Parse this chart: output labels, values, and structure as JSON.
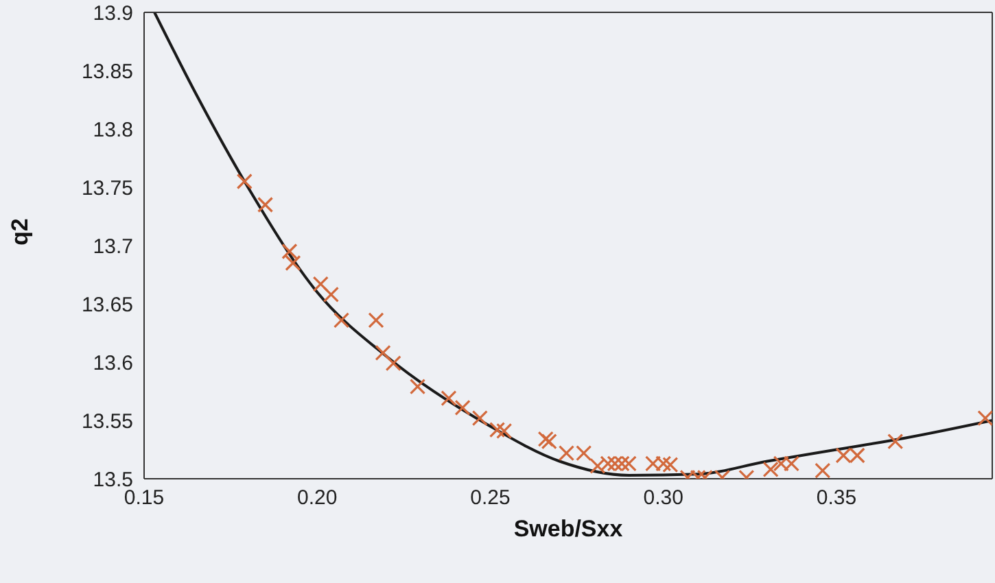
{
  "chart_data": {
    "type": "scatter",
    "xlabel": "Sweb/Sxx",
    "ylabel": "q2",
    "xlim": [
      0.15,
      0.395
    ],
    "xticks": [
      0.15,
      {
        "value": 0.2,
        "label": "0.20"
      },
      0.25,
      {
        "value": 0.3,
        "label": "0.30"
      },
      0.35
    ],
    "ylim": [
      13.5,
      13.9
    ],
    "yticks": [
      13.5,
      13.55,
      13.6,
      13.65,
      13.7,
      13.75,
      13.8,
      13.85,
      13.9
    ],
    "series": [
      {
        "type": "scatter",
        "color": "#d2693c",
        "marker": "cross",
        "x": [
          0.179,
          0.185,
          0.192,
          0.193,
          0.201,
          0.204,
          0.207,
          0.217,
          0.219,
          0.222,
          0.229,
          0.238,
          0.242,
          0.247,
          0.252,
          0.254,
          0.266,
          0.267,
          0.272,
          0.277,
          0.281,
          0.284,
          0.286,
          0.288,
          0.29,
          0.297,
          0.3,
          0.302,
          0.307,
          0.31,
          0.312,
          0.317,
          0.324,
          0.331,
          0.334,
          0.337,
          0.346,
          0.352,
          0.356,
          0.367,
          0.393
        ],
        "values": [
          13.755,
          13.735,
          13.695,
          13.685,
          13.667,
          13.658,
          13.636,
          13.636,
          13.608,
          13.599,
          13.579,
          13.569,
          13.561,
          13.552,
          13.542,
          13.541,
          13.534,
          13.532,
          13.522,
          13.522,
          13.511,
          13.513,
          13.513,
          13.513,
          13.513,
          13.513,
          13.513,
          13.512,
          13.501,
          13.501,
          13.501,
          13.501,
          13.501,
          13.508,
          13.513,
          13.513,
          13.507,
          13.52,
          13.52,
          13.532,
          13.552
        ]
      },
      {
        "type": "line",
        "color": "#1a1a1a",
        "marker": "none",
        "x": [
          0.153,
          0.165,
          0.18,
          0.2,
          0.22,
          0.25,
          0.27,
          0.29,
          0.31,
          0.33,
          0.35,
          0.37,
          0.395
        ],
        "values": [
          13.9,
          13.83,
          13.75,
          13.66,
          13.605,
          13.545,
          13.515,
          13.503,
          13.504,
          13.515,
          13.525,
          13.535,
          13.55
        ]
      }
    ]
  }
}
